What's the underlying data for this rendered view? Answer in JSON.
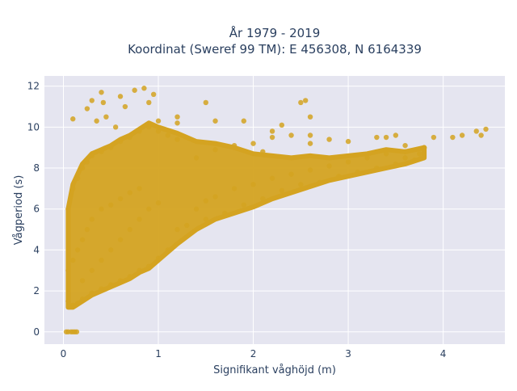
{
  "chart_data": {
    "type": "scatter",
    "title": [
      "År 1979 - 2019",
      "Koordinat (Sweref 99 TM): E 456308, N 6164339"
    ],
    "xlabel": "Signifikant våghöjd (m)",
    "ylabel": "Vågperiod (s)",
    "xlim": [
      -0.2,
      4.65
    ],
    "ylim": [
      -0.6,
      12.5
    ],
    "xticks": [
      0,
      1,
      2,
      3,
      4
    ],
    "yticks": [
      0,
      2,
      4,
      6,
      8,
      10,
      12
    ],
    "grid": true,
    "legend": "none",
    "colors": {
      "marker": "#D4A321",
      "plot_bg": "#E5E5F0",
      "grid": "#ffffff",
      "text": "#2a3f5f"
    },
    "series": [
      {
        "points": [
          [
            0.03,
            0
          ],
          [
            0.05,
            0
          ],
          [
            0.08,
            0
          ],
          [
            0.1,
            0
          ],
          [
            0.12,
            0
          ],
          [
            0.14,
            0
          ],
          [
            0.05,
            1.5
          ],
          [
            0.1,
            1.3
          ],
          [
            0.15,
            1.4
          ],
          [
            0.2,
            1.6
          ],
          [
            0.3,
            1.9
          ],
          [
            0.4,
            2.1
          ],
          [
            0.5,
            2.3
          ],
          [
            0.6,
            2.5
          ],
          [
            0.7,
            2.7
          ],
          [
            0.8,
            3.0
          ],
          [
            0.9,
            3.2
          ],
          [
            1.0,
            3.6
          ],
          [
            1.1,
            4.0
          ],
          [
            0.05,
            3.0
          ],
          [
            0.1,
            3.5
          ],
          [
            0.15,
            4.0
          ],
          [
            0.2,
            4.5
          ],
          [
            0.25,
            5.0
          ],
          [
            0.3,
            5.5
          ],
          [
            0.4,
            6.0
          ],
          [
            0.5,
            6.2
          ],
          [
            0.6,
            6.5
          ],
          [
            0.7,
            6.8
          ],
          [
            0.8,
            7.0
          ],
          [
            0.05,
            6.0
          ],
          [
            0.1,
            7.0
          ],
          [
            0.15,
            7.5
          ],
          [
            0.2,
            8.0
          ],
          [
            0.25,
            8.3
          ],
          [
            0.3,
            8.6
          ],
          [
            0.4,
            8.8
          ],
          [
            0.5,
            9.0
          ],
          [
            0.6,
            9.3
          ],
          [
            0.7,
            9.5
          ],
          [
            0.8,
            9.8
          ],
          [
            0.9,
            10.0
          ],
          [
            1.0,
            9.8
          ],
          [
            1.1,
            9.6
          ],
          [
            1.2,
            9.4
          ],
          [
            0.2,
            2.5
          ],
          [
            0.3,
            3.0
          ],
          [
            0.4,
            3.5
          ],
          [
            0.5,
            4.0
          ],
          [
            0.6,
            4.5
          ],
          [
            0.7,
            5.0
          ],
          [
            0.8,
            5.5
          ],
          [
            0.9,
            6.0
          ],
          [
            1.0,
            6.3
          ],
          [
            1.2,
            5.0
          ],
          [
            1.3,
            5.2
          ],
          [
            0.35,
            10.3
          ],
          [
            0.45,
            10.5
          ],
          [
            0.55,
            10.0
          ],
          [
            0.25,
            10.9
          ],
          [
            0.4,
            11.7
          ],
          [
            0.42,
            11.2
          ],
          [
            0.6,
            11.5
          ],
          [
            0.75,
            11.8
          ],
          [
            0.85,
            11.9
          ],
          [
            1.0,
            10.3
          ],
          [
            1.2,
            10.2
          ],
          [
            0.3,
            11.3
          ],
          [
            0.1,
            10.4
          ],
          [
            0.65,
            11.0
          ],
          [
            0.9,
            11.2
          ],
          [
            0.95,
            11.6
          ],
          [
            1.6,
            10.3
          ],
          [
            1.5,
            11.2
          ],
          [
            1.4,
            6.0
          ],
          [
            1.5,
            6.4
          ],
          [
            1.6,
            6.6
          ],
          [
            1.8,
            7.0
          ],
          [
            2.0,
            7.2
          ],
          [
            2.2,
            7.5
          ],
          [
            2.4,
            7.7
          ],
          [
            2.6,
            7.9
          ],
          [
            2.8,
            8.1
          ],
          [
            3.0,
            8.3
          ],
          [
            3.2,
            8.5
          ],
          [
            3.4,
            8.7
          ],
          [
            3.6,
            8.8
          ],
          [
            3.8,
            9.0
          ],
          [
            1.4,
            8.5
          ],
          [
            1.6,
            8.9
          ],
          [
            1.8,
            9.1
          ],
          [
            2.0,
            9.2
          ],
          [
            2.2,
            9.5
          ],
          [
            2.4,
            9.6
          ],
          [
            2.6,
            9.6
          ],
          [
            2.8,
            9.4
          ],
          [
            3.0,
            9.3
          ],
          [
            3.3,
            9.5
          ],
          [
            3.6,
            9.1
          ],
          [
            1.5,
            5.5
          ],
          [
            1.7,
            5.8
          ],
          [
            1.9,
            6.2
          ],
          [
            2.1,
            6.5
          ],
          [
            2.3,
            6.9
          ],
          [
            2.5,
            7.2
          ],
          [
            2.7,
            7.3
          ],
          [
            2.9,
            7.6
          ],
          [
            3.1,
            7.8
          ],
          [
            3.3,
            8.0
          ],
          [
            3.5,
            8.2
          ],
          [
            3.7,
            8.4
          ],
          [
            2.1,
            8.8
          ],
          [
            2.2,
            9.8
          ],
          [
            2.3,
            10.1
          ],
          [
            2.6,
            9.2
          ],
          [
            3.4,
            9.5
          ],
          [
            3.5,
            9.6
          ],
          [
            1.9,
            10.3
          ],
          [
            1.2,
            10.5
          ],
          [
            2.5,
            11.2
          ],
          [
            2.55,
            11.3
          ],
          [
            2.6,
            10.5
          ],
          [
            3.9,
            9.5
          ],
          [
            4.1,
            9.5
          ],
          [
            4.2,
            9.6
          ],
          [
            4.35,
            9.8
          ],
          [
            4.45,
            9.9
          ],
          [
            4.4,
            9.6
          ],
          [
            3.75,
            8.7
          ],
          [
            3.8,
            9.0
          ],
          [
            3.6,
            8.5
          ]
        ]
      }
    ]
  }
}
